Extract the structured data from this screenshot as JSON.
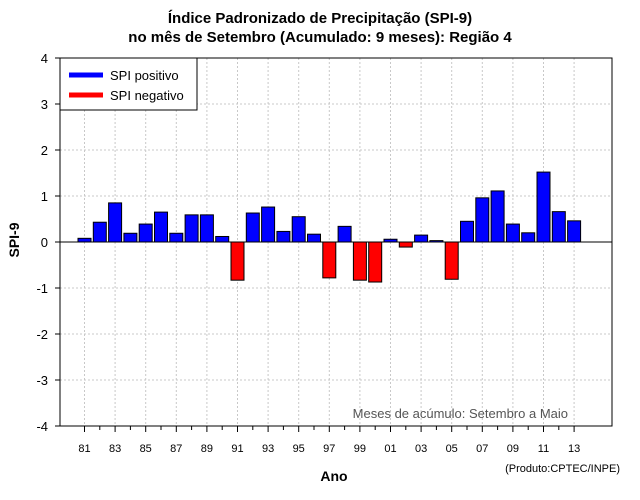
{
  "title_line1": "Índice Padronizado de Precipitação (SPI-9)",
  "title_line2": "no mês de Setembro (Acumulado: 9 meses): Região 4",
  "credit": "(Produto:CPTEC/INPE)",
  "colors": {
    "positive": "#0000ff",
    "negative": "#ff0000",
    "grid": "#c8c8c8"
  },
  "chart_data": {
    "type": "bar",
    "title": "Índice Padronizado de Precipitação (SPI-9) no mês de Setembro (Acumulado: 9 meses): Região 4",
    "xlabel": "Ano",
    "ylabel": "SPI-9",
    "ylim": [
      -4,
      4
    ],
    "yticks": [
      "-4",
      "-3",
      "-2",
      "-1",
      "0",
      "1",
      "2",
      "3",
      "4"
    ],
    "xtick_labels": [
      "81",
      "83",
      "85",
      "87",
      "89",
      "91",
      "93",
      "95",
      "97",
      "99",
      "01",
      "03",
      "05",
      "07",
      "09",
      "11",
      "13"
    ],
    "annotation": "Meses de acúmulo: Setembro a Maio",
    "legend": {
      "position": "top-left",
      "entries": [
        {
          "label": "SPI positivo",
          "color": "#0000ff"
        },
        {
          "label": "SPI negativo",
          "color": "#ff0000"
        }
      ]
    },
    "categories": [
      "1981",
      "1982",
      "1983",
      "1984",
      "1985",
      "1986",
      "1987",
      "1988",
      "1989",
      "1990",
      "1991",
      "1992",
      "1993",
      "1994",
      "1995",
      "1996",
      "1997",
      "1998",
      "1999",
      "2000",
      "2001",
      "2002",
      "2003",
      "2004",
      "2005",
      "2006",
      "2007",
      "2008",
      "2009",
      "2010",
      "2011",
      "2012",
      "2013"
    ],
    "values": [
      0.08,
      0.43,
      0.85,
      0.19,
      0.39,
      0.65,
      0.19,
      0.59,
      0.59,
      0.12,
      -0.83,
      0.63,
      0.76,
      0.23,
      0.55,
      0.17,
      -0.78,
      0.34,
      -0.83,
      -0.87,
      0.06,
      -0.11,
      0.15,
      0.03,
      -0.81,
      0.45,
      0.96,
      1.11,
      0.39,
      0.2,
      1.52,
      0.66,
      0.46
    ]
  }
}
